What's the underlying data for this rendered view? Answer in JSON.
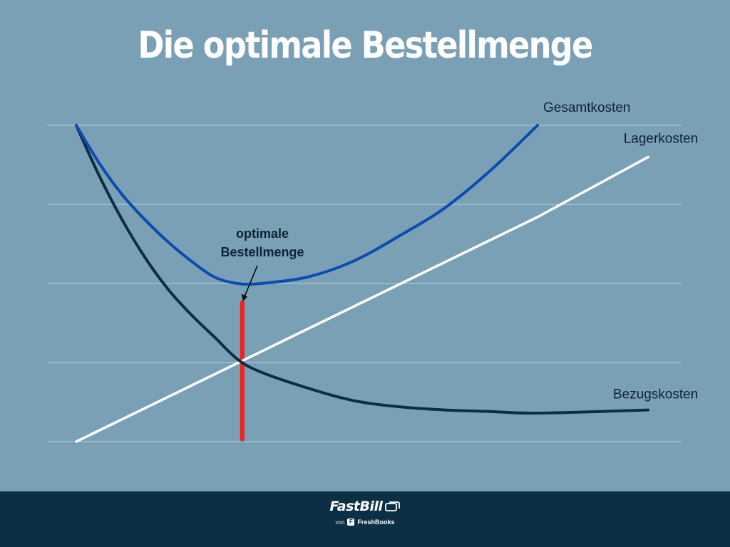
{
  "title": "Die optimale Bestellmenge",
  "colors": {
    "background": "#7aa0b5",
    "footer": "#0b3045",
    "gesamtkosten": "#0a4db0",
    "lagerkosten": "#ffffff",
    "bezugskosten": "#0c2e44",
    "optimum_marker": "#ee2222",
    "gridline": "#c9dbe6"
  },
  "chart_data": {
    "type": "line",
    "title": "Die optimale Bestellmenge",
    "xlabel": "",
    "ylabel": "",
    "xlim": [
      0,
      1
    ],
    "ylim": [
      0,
      1
    ],
    "grid": true,
    "gridlines_y": [
      0,
      0.25,
      0.5,
      0.75,
      1.0
    ],
    "series": [
      {
        "name": "Gesamtkosten",
        "x": [
          0,
          0.05,
          0.1,
          0.15,
          0.2,
          0.25,
          0.3,
          0.35,
          0.4,
          0.5,
          0.6,
          0.7,
          0.8,
          0.9,
          1.0
        ],
        "y": [
          1.0,
          0.88,
          0.78,
          0.7,
          0.63,
          0.57,
          0.52,
          0.5,
          0.5,
          0.52,
          0.57,
          0.65,
          0.74,
          0.86,
          1.0
        ]
      },
      {
        "name": "Lagerkosten",
        "x": [
          0,
          1.0,
          1.24
        ],
        "y": [
          0,
          0.71,
          0.9
        ]
      },
      {
        "name": "Bezugskosten",
        "x": [
          0,
          0.05,
          0.1,
          0.15,
          0.2,
          0.25,
          0.3,
          0.35,
          0.4,
          0.5,
          0.6,
          0.7,
          0.8,
          0.9,
          1.0,
          1.24
        ],
        "y": [
          1.0,
          0.84,
          0.7,
          0.58,
          0.48,
          0.4,
          0.33,
          0.26,
          0.22,
          0.17,
          0.13,
          0.11,
          0.1,
          0.095,
          0.09,
          0.1
        ]
      }
    ],
    "annotation": {
      "text_line1": "optimale",
      "text_line2": "Bestellmenge",
      "x": 0.36,
      "y_top": 0.44,
      "y_bottom": 0
    }
  },
  "footer": {
    "brand": "FastBill",
    "von": "von",
    "partner": "FreshBooks",
    "partner_initial": "F"
  }
}
